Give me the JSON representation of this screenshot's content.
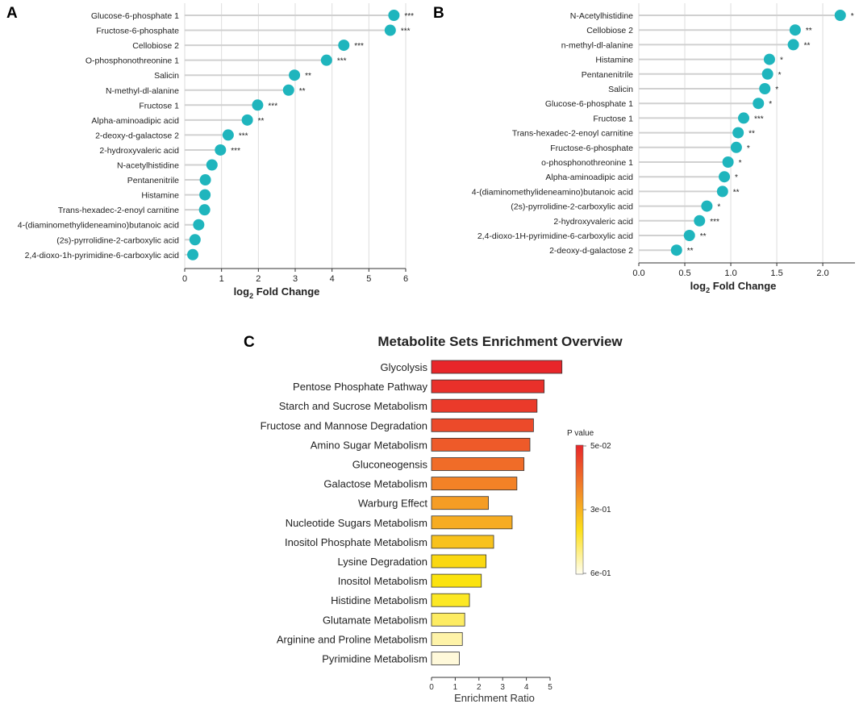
{
  "panels": {
    "a": "A",
    "b": "B",
    "c": "C"
  },
  "chart_data": [
    {
      "type": "lollipop",
      "panel": "A",
      "xlabel_main": "log",
      "xlabel_sub": "2",
      "xlabel_tail": " Fold Change",
      "xlim": [
        0,
        6
      ],
      "xticks": [
        0,
        1,
        2,
        3,
        4,
        5,
        6
      ],
      "categories": [
        "Glucose-6-phosphate 1",
        "Fructose-6-phosphate",
        "Cellobiose 2",
        "O-phosphonothreonine 1",
        "Salicin",
        "N-methyl-dl-alanine",
        "Fructose 1",
        "Alpha-aminoadipic acid",
        "2-deoxy-d-galactose 2",
        "2-hydroxyvaleric acid",
        "N-acetylhistidine",
        "Pentanenitrile",
        "Histamine",
        "Trans-hexadec-2-enoyl carnitine",
        "4-(diaminomethylideneamino)butanoic acid",
        "(2s)-pyrrolidine-2-carboxylic acid",
        "2,4-dioxo-1h-pyrimidine-6-carboxylic acid"
      ],
      "values": [
        5.68,
        5.58,
        4.32,
        3.85,
        2.98,
        2.82,
        1.98,
        1.7,
        1.18,
        0.97,
        0.74,
        0.56,
        0.55,
        0.54,
        0.38,
        0.28,
        0.22
      ],
      "significance": [
        "***",
        "***",
        "***",
        "***",
        "**",
        "**",
        "***",
        "**",
        "***",
        "***",
        "",
        "",
        "",
        "",
        "",
        "",
        ""
      ]
    },
    {
      "type": "lollipop",
      "panel": "B",
      "xlabel_main": "log",
      "xlabel_sub": "2",
      "xlabel_tail": " Fold Change",
      "xlim": [
        0,
        2.35
      ],
      "xticks": [
        0.0,
        0.5,
        1.0,
        1.5,
        2.0
      ],
      "xtick_labels": [
        "0.0",
        "0.5",
        "1.0",
        "1.5",
        "2.0"
      ],
      "categories": [
        "N-Acetylhistidine",
        "Cellobiose 2",
        "n-methyl-dl-alanine",
        "Histamine",
        "Pentanenitrile",
        "Salicin",
        "Glucose-6-phosphate 1",
        "Fructose 1",
        "Trans-hexadec-2-enoyl carnitine",
        "Fructose-6-phosphate",
        "o-phosphonothreonine 1",
        "Alpha-aminoadipic acid",
        "4-(diaminomethylideneamino)butanoic acid",
        "(2s)-pyrrolidine-2-carboxylic acid",
        "2-hydroxyvaleric acid",
        "2,4-dioxo-1H-pyrimidine-6-carboxylic acid",
        "2-deoxy-d-galactose 2"
      ],
      "values": [
        2.19,
        1.7,
        1.68,
        1.42,
        1.4,
        1.37,
        1.3,
        1.14,
        1.08,
        1.06,
        0.97,
        0.93,
        0.91,
        0.74,
        0.66,
        0.55,
        0.41
      ],
      "significance": [
        "*",
        "**",
        "**",
        "*",
        "*",
        "*",
        "*",
        "***",
        "**",
        "*",
        "*",
        "*",
        "**",
        "*",
        "***",
        "**",
        "**"
      ]
    },
    {
      "type": "bar",
      "panel": "C",
      "title": "Metabolite Sets Enrichment Overview",
      "xlabel": "Enrichment Ratio",
      "xlim": [
        0,
        5
      ],
      "xticks": [
        0,
        1,
        2,
        3,
        4,
        5
      ],
      "categories": [
        "Glycolysis",
        "Pentose Phosphate Pathway",
        "Starch and Sucrose Metabolism",
        "Fructose and Mannose Degradation",
        "Amino Sugar Metabolism",
        "Gluconeogensis",
        "Galactose Metabolism",
        "Warburg Effect",
        "Nucleotide Sugars Metabolism",
        "Inositol Phosphate Metabolism",
        "Lysine Degradation",
        "Inositol Metabolism",
        "Histidine Metabolism",
        "Glutamate Metabolism",
        "Arginine and Proline Metabolism",
        "Pyrimidine Metabolism"
      ],
      "values": [
        5.5,
        4.75,
        4.45,
        4.3,
        4.15,
        3.9,
        3.6,
        2.4,
        3.4,
        2.62,
        2.3,
        2.1,
        1.6,
        1.4,
        1.3,
        1.17
      ],
      "colors": [
        "#e8262a",
        "#e9302a",
        "#ea3a2a",
        "#ec4a2a",
        "#ee5a29",
        "#f06c28",
        "#f38226",
        "#f59d24",
        "#f6ac22",
        "#f8c21c",
        "#fad811",
        "#fbe30e",
        "#fce824",
        "#fdec62",
        "#fef3a8",
        "#fff9da"
      ],
      "legend": {
        "title": "P value",
        "labels": [
          "5e-02",
          "3e-01",
          "6e-01"
        ],
        "gradient": [
          "#e8262a",
          "#f2832a",
          "#fde01a",
          "#fffef0"
        ]
      }
    }
  ]
}
